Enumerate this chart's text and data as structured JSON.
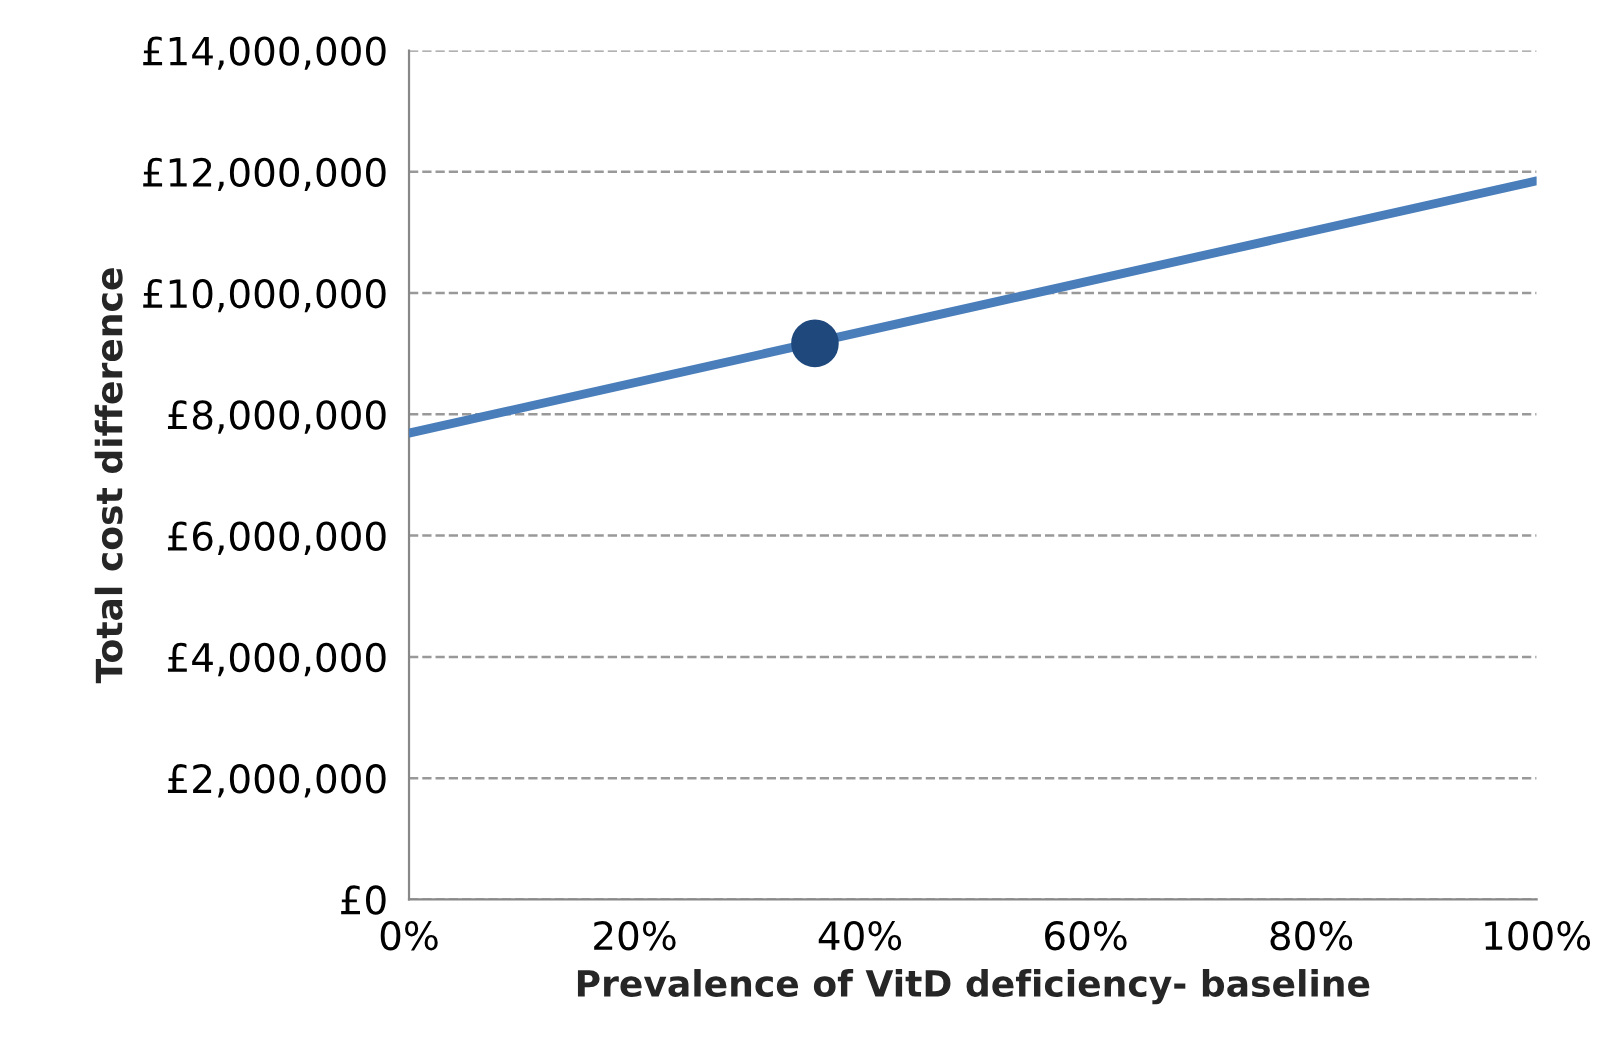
{
  "chart_data": {
    "type": "line",
    "xlabel": "Prevalence of VitD deficiency- baseline",
    "ylabel": "Total cost difference",
    "series": [
      {
        "type": "line",
        "color": "#4a7ebb",
        "x": [
          0,
          100
        ],
        "values": [
          7690000,
          11850000
        ]
      },
      {
        "type": "scatter",
        "color": "#1f497d",
        "marker": "circle",
        "x": [
          36
        ],
        "values": [
          9170000
        ]
      }
    ],
    "xlim": [
      0,
      100
    ],
    "ylim": [
      0,
      14000000
    ],
    "xticks": [
      {
        "value": 0,
        "label": "0%"
      },
      {
        "value": 20,
        "label": "20%"
      },
      {
        "value": 40,
        "label": "40%"
      },
      {
        "value": 60,
        "label": "60%"
      },
      {
        "value": 80,
        "label": "80%"
      },
      {
        "value": 100,
        "label": "100%"
      }
    ],
    "yticks": [
      {
        "value": 0,
        "label": "£0"
      },
      {
        "value": 2000000,
        "label": "£2,000,000"
      },
      {
        "value": 4000000,
        "label": "£4,000,000"
      },
      {
        "value": 6000000,
        "label": "£6,000,000"
      },
      {
        "value": 8000000,
        "label": "£8,000,000"
      },
      {
        "value": 10000000,
        "label": "£10,000,000"
      },
      {
        "value": 12000000,
        "label": "£12,000,000"
      },
      {
        "value": 14000000,
        "label": "£14,000,000"
      }
    ],
    "grid": "y"
  }
}
